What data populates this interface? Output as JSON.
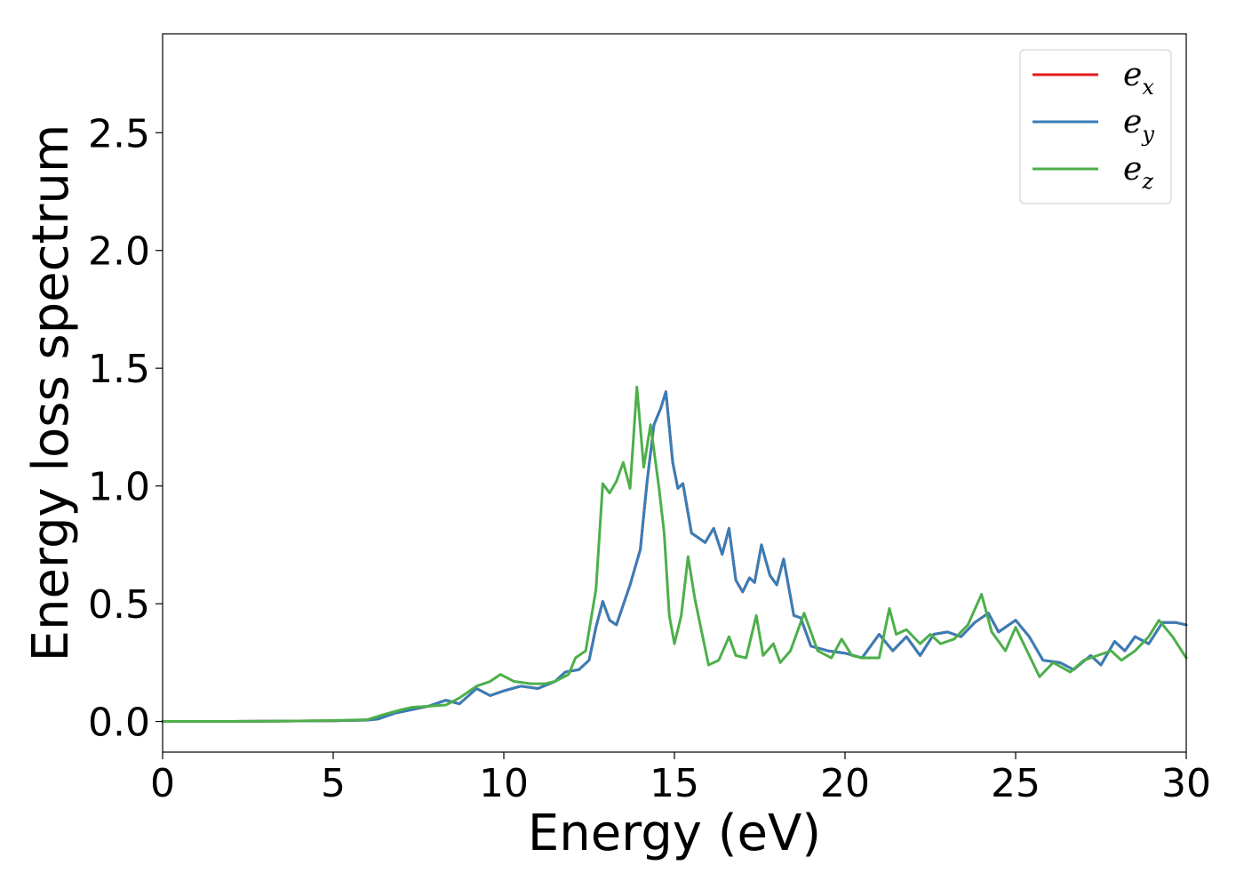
{
  "chart_data": {
    "type": "line",
    "xlabel": "Energy (eV)",
    "ylabel": "Energy loss spectrum",
    "xlim": [
      0,
      30
    ],
    "ylim": [
      -0.13,
      2.92
    ],
    "x_ticks": [
      0,
      5,
      10,
      15,
      20,
      25,
      30
    ],
    "y_ticks": [
      0.0,
      0.5,
      1.0,
      1.5,
      2.0,
      2.5
    ],
    "grid": false,
    "legend_position": "top-right",
    "series": [
      {
        "name": "e_x",
        "label_base": "e",
        "label_sub": "x",
        "color": "#e41a1c",
        "points": [
          [
            0,
            0
          ],
          [
            2,
            0
          ],
          [
            4,
            0.002
          ],
          [
            5,
            0.003
          ],
          [
            6,
            0.006
          ],
          [
            6.3,
            0.01
          ],
          [
            6.8,
            0.035
          ],
          [
            7.3,
            0.05
          ],
          [
            7.8,
            0.065
          ],
          [
            8.3,
            0.09
          ],
          [
            8.7,
            0.075
          ],
          [
            9.2,
            0.14
          ],
          [
            9.6,
            0.11
          ],
          [
            10,
            0.13
          ],
          [
            10.5,
            0.15
          ],
          [
            11,
            0.14
          ],
          [
            11.5,
            0.17
          ],
          [
            11.8,
            0.21
          ],
          [
            12.2,
            0.22
          ],
          [
            12.5,
            0.26
          ],
          [
            12.7,
            0.4
          ],
          [
            12.9,
            0.51
          ],
          [
            13.1,
            0.43
          ],
          [
            13.3,
            0.41
          ],
          [
            13.7,
            0.58
          ],
          [
            14.0,
            0.73
          ],
          [
            14.2,
            1.02
          ],
          [
            14.4,
            1.26
          ],
          [
            14.6,
            1.33
          ],
          [
            14.75,
            1.4
          ],
          [
            14.95,
            1.1
          ],
          [
            15.1,
            0.99
          ],
          [
            15.25,
            1.01
          ],
          [
            15.5,
            0.8
          ],
          [
            15.7,
            0.78
          ],
          [
            15.9,
            0.76
          ],
          [
            16.15,
            0.82
          ],
          [
            16.4,
            0.71
          ],
          [
            16.6,
            0.82
          ],
          [
            16.8,
            0.6
          ],
          [
            17.0,
            0.55
          ],
          [
            17.2,
            0.61
          ],
          [
            17.35,
            0.59
          ],
          [
            17.55,
            0.75
          ],
          [
            17.8,
            0.62
          ],
          [
            18.0,
            0.58
          ],
          [
            18.2,
            0.69
          ],
          [
            18.5,
            0.45
          ],
          [
            18.7,
            0.44
          ],
          [
            19.0,
            0.32
          ],
          [
            19.5,
            0.3
          ],
          [
            20.0,
            0.29
          ],
          [
            20.5,
            0.27
          ],
          [
            21.0,
            0.37
          ],
          [
            21.4,
            0.3
          ],
          [
            21.8,
            0.36
          ],
          [
            22.2,
            0.28
          ],
          [
            22.6,
            0.37
          ],
          [
            23.0,
            0.38
          ],
          [
            23.4,
            0.36
          ],
          [
            23.8,
            0.42
          ],
          [
            24.2,
            0.46
          ],
          [
            24.5,
            0.38
          ],
          [
            25.0,
            0.43
          ],
          [
            25.4,
            0.36
          ],
          [
            25.8,
            0.26
          ],
          [
            26.3,
            0.25
          ],
          [
            26.7,
            0.22
          ],
          [
            27.2,
            0.28
          ],
          [
            27.5,
            0.24
          ],
          [
            27.9,
            0.34
          ],
          [
            28.2,
            0.3
          ],
          [
            28.5,
            0.36
          ],
          [
            28.9,
            0.33
          ],
          [
            29.3,
            0.42
          ],
          [
            29.7,
            0.42
          ],
          [
            30,
            0.41
          ]
        ]
      },
      {
        "name": "e_y",
        "label_base": "e",
        "label_sub": "y",
        "color": "#377eb8",
        "points": [
          [
            0,
            0
          ],
          [
            2,
            0
          ],
          [
            4,
            0.002
          ],
          [
            5,
            0.003
          ],
          [
            6,
            0.006
          ],
          [
            6.3,
            0.01
          ],
          [
            6.8,
            0.035
          ],
          [
            7.3,
            0.05
          ],
          [
            7.8,
            0.065
          ],
          [
            8.3,
            0.09
          ],
          [
            8.7,
            0.075
          ],
          [
            9.2,
            0.14
          ],
          [
            9.6,
            0.11
          ],
          [
            10,
            0.13
          ],
          [
            10.5,
            0.15
          ],
          [
            11,
            0.14
          ],
          [
            11.5,
            0.17
          ],
          [
            11.8,
            0.21
          ],
          [
            12.2,
            0.22
          ],
          [
            12.5,
            0.26
          ],
          [
            12.7,
            0.4
          ],
          [
            12.9,
            0.51
          ],
          [
            13.1,
            0.43
          ],
          [
            13.3,
            0.41
          ],
          [
            13.7,
            0.58
          ],
          [
            14.0,
            0.73
          ],
          [
            14.2,
            1.02
          ],
          [
            14.4,
            1.26
          ],
          [
            14.6,
            1.33
          ],
          [
            14.75,
            1.4
          ],
          [
            14.95,
            1.1
          ],
          [
            15.1,
            0.99
          ],
          [
            15.25,
            1.01
          ],
          [
            15.5,
            0.8
          ],
          [
            15.7,
            0.78
          ],
          [
            15.9,
            0.76
          ],
          [
            16.15,
            0.82
          ],
          [
            16.4,
            0.71
          ],
          [
            16.6,
            0.82
          ],
          [
            16.8,
            0.6
          ],
          [
            17.0,
            0.55
          ],
          [
            17.2,
            0.61
          ],
          [
            17.35,
            0.59
          ],
          [
            17.55,
            0.75
          ],
          [
            17.8,
            0.62
          ],
          [
            18.0,
            0.58
          ],
          [
            18.2,
            0.69
          ],
          [
            18.5,
            0.45
          ],
          [
            18.7,
            0.44
          ],
          [
            19.0,
            0.32
          ],
          [
            19.5,
            0.3
          ],
          [
            20.0,
            0.29
          ],
          [
            20.5,
            0.27
          ],
          [
            21.0,
            0.37
          ],
          [
            21.4,
            0.3
          ],
          [
            21.8,
            0.36
          ],
          [
            22.2,
            0.28
          ],
          [
            22.6,
            0.37
          ],
          [
            23.0,
            0.38
          ],
          [
            23.4,
            0.36
          ],
          [
            23.8,
            0.42
          ],
          [
            24.2,
            0.46
          ],
          [
            24.5,
            0.38
          ],
          [
            25.0,
            0.43
          ],
          [
            25.4,
            0.36
          ],
          [
            25.8,
            0.26
          ],
          [
            26.3,
            0.25
          ],
          [
            26.7,
            0.22
          ],
          [
            27.2,
            0.28
          ],
          [
            27.5,
            0.24
          ],
          [
            27.9,
            0.34
          ],
          [
            28.2,
            0.3
          ],
          [
            28.5,
            0.36
          ],
          [
            28.9,
            0.33
          ],
          [
            29.3,
            0.42
          ],
          [
            29.7,
            0.42
          ],
          [
            30,
            0.41
          ]
        ]
      },
      {
        "name": "e_z",
        "label_base": "e",
        "label_sub": "z",
        "color": "#4daf4a",
        "points": [
          [
            0,
            0
          ],
          [
            2,
            0
          ],
          [
            4,
            0.002
          ],
          [
            5,
            0.004
          ],
          [
            6,
            0.008
          ],
          [
            6.5,
            0.03
          ],
          [
            7.0,
            0.05
          ],
          [
            7.3,
            0.06
          ],
          [
            7.8,
            0.065
          ],
          [
            8.3,
            0.07
          ],
          [
            8.7,
            0.1
          ],
          [
            9.2,
            0.15
          ],
          [
            9.6,
            0.17
          ],
          [
            9.9,
            0.2
          ],
          [
            10.3,
            0.17
          ],
          [
            10.8,
            0.16
          ],
          [
            11.2,
            0.16
          ],
          [
            11.5,
            0.17
          ],
          [
            11.9,
            0.2
          ],
          [
            12.1,
            0.27
          ],
          [
            12.4,
            0.3
          ],
          [
            12.7,
            0.56
          ],
          [
            12.9,
            1.01
          ],
          [
            13.1,
            0.97
          ],
          [
            13.3,
            1.02
          ],
          [
            13.5,
            1.1
          ],
          [
            13.7,
            0.99
          ],
          [
            13.9,
            1.42
          ],
          [
            14.1,
            1.08
          ],
          [
            14.3,
            1.26
          ],
          [
            14.55,
            0.99
          ],
          [
            14.7,
            0.8
          ],
          [
            14.85,
            0.45
          ],
          [
            15.0,
            0.33
          ],
          [
            15.2,
            0.45
          ],
          [
            15.4,
            0.7
          ],
          [
            15.6,
            0.52
          ],
          [
            15.8,
            0.38
          ],
          [
            16.0,
            0.24
          ],
          [
            16.3,
            0.26
          ],
          [
            16.6,
            0.36
          ],
          [
            16.8,
            0.28
          ],
          [
            17.1,
            0.27
          ],
          [
            17.4,
            0.45
          ],
          [
            17.6,
            0.28
          ],
          [
            17.9,
            0.33
          ],
          [
            18.1,
            0.25
          ],
          [
            18.4,
            0.3
          ],
          [
            18.8,
            0.46
          ],
          [
            19.2,
            0.3
          ],
          [
            19.6,
            0.27
          ],
          [
            19.9,
            0.35
          ],
          [
            20.2,
            0.28
          ],
          [
            20.5,
            0.27
          ],
          [
            21.0,
            0.27
          ],
          [
            21.3,
            0.48
          ],
          [
            21.5,
            0.37
          ],
          [
            21.8,
            0.39
          ],
          [
            22.2,
            0.33
          ],
          [
            22.5,
            0.37
          ],
          [
            22.8,
            0.33
          ],
          [
            23.2,
            0.35
          ],
          [
            23.6,
            0.41
          ],
          [
            24.0,
            0.54
          ],
          [
            24.3,
            0.38
          ],
          [
            24.7,
            0.3
          ],
          [
            25.0,
            0.4
          ],
          [
            25.4,
            0.28
          ],
          [
            25.7,
            0.19
          ],
          [
            26.1,
            0.25
          ],
          [
            26.6,
            0.21
          ],
          [
            27.0,
            0.26
          ],
          [
            27.4,
            0.28
          ],
          [
            27.8,
            0.3
          ],
          [
            28.1,
            0.26
          ],
          [
            28.5,
            0.3
          ],
          [
            28.9,
            0.36
          ],
          [
            29.2,
            0.43
          ],
          [
            29.6,
            0.36
          ],
          [
            30,
            0.27
          ]
        ]
      }
    ]
  }
}
